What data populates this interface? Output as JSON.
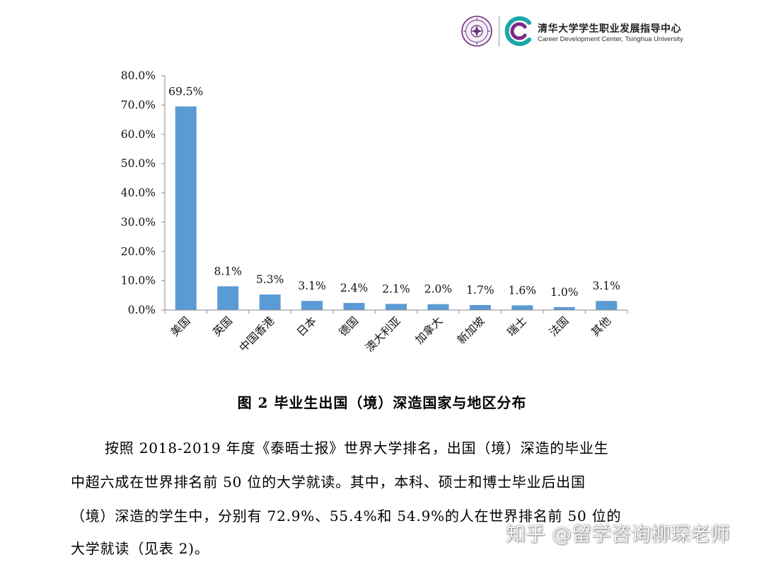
{
  "header": {
    "cn_title": "清华大学学生职业发展指导中心",
    "en_title": "Career Development Center, Tsinghua University"
  },
  "colors": {
    "bar": "#5B9BD5",
    "logo_teal": "#1aa7a8",
    "logo_purple": "#7b2a86",
    "seal": "#6b2f7a"
  },
  "chart_data": {
    "type": "bar",
    "categories": [
      "美国",
      "英国",
      "中国香港",
      "日本",
      "德国",
      "澳大利亚",
      "加拿大",
      "新加坡",
      "瑞士",
      "法国",
      "其他"
    ],
    "values": [
      69.5,
      8.1,
      5.3,
      3.1,
      2.4,
      2.1,
      2.0,
      1.7,
      1.6,
      1.0,
      3.1
    ],
    "data_labels": [
      "69.5%",
      "8.1%",
      "5.3%",
      "3.1%",
      "2.4%",
      "2.1%",
      "2.0%",
      "1.7%",
      "1.6%",
      "1.0%",
      "3.1%"
    ],
    "yticks": [
      "0.0%",
      "10.0%",
      "20.0%",
      "30.0%",
      "40.0%",
      "50.0%",
      "60.0%",
      "70.0%",
      "80.0%"
    ],
    "ylim": [
      0,
      80
    ],
    "title": "",
    "xlabel": "",
    "ylabel": "",
    "grid": false,
    "legend": "none"
  },
  "caption": "图 2 毕业生出国（境）深造国家与地区分布",
  "paragraph_lines": [
    "按照 2018-2019 年度《泰晤士报》世界大学排名，出国（境）深造的毕业生",
    "中超六成在世界排名前 50 位的大学就读。其中，本科、硕士和博士毕业后出国",
    "（境）深造的学生中，分别有 72.9%、55.4%和 54.9%的人在世界排名前 50 位的",
    "大学就读（见表 2)。"
  ],
  "watermark": "知乎 @留学咨询柳琛老师"
}
